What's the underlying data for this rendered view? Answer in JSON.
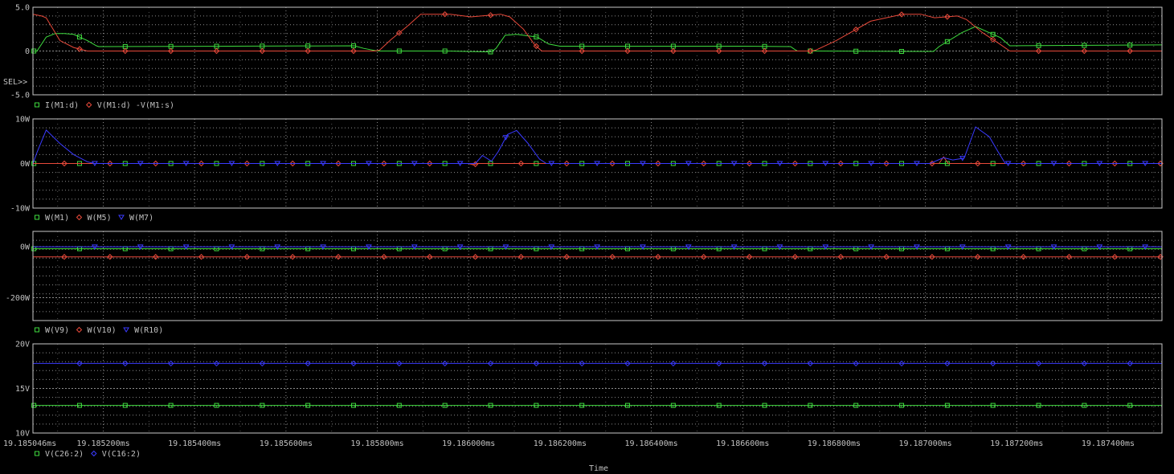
{
  "colors": {
    "background": "#000000",
    "frame": "#c8c8c8",
    "grid": "#8c8c8c",
    "text": "#c0c0c0",
    "green": "#3fdc3f",
    "red": "#e8493a",
    "blue": "#3a3aff"
  },
  "icons": {
    "square": "square-marker-icon",
    "diamond": "diamond-marker-icon",
    "triangle": "triangle-down-marker-icon"
  },
  "x_axis": {
    "label": "Time",
    "xlim": [
      19.185046,
      19.187518
    ],
    "unit": "ms",
    "ticks": [
      {
        "value": 19.185046,
        "label": "19.185046ms"
      },
      {
        "value": 19.1852,
        "label": "19.185200ms"
      },
      {
        "value": 19.1854,
        "label": "19.185400ms"
      },
      {
        "value": 19.1856,
        "label": "19.185600ms"
      },
      {
        "value": 19.1858,
        "label": "19.185800ms"
      },
      {
        "value": 19.186,
        "label": "19.186000ms"
      },
      {
        "value": 19.1862,
        "label": "19.186200ms"
      },
      {
        "value": 19.1864,
        "label": "19.186400ms"
      },
      {
        "value": 19.1866,
        "label": "19.186600ms"
      },
      {
        "value": 19.1868,
        "label": "19.186800ms"
      },
      {
        "value": 19.187,
        "label": "19.187000ms"
      },
      {
        "value": 19.1872,
        "label": "19.187200ms"
      },
      {
        "value": 19.1874,
        "label": "19.187400ms"
      }
    ]
  },
  "chart_data": [
    {
      "type": "line",
      "title": "",
      "ylim": [
        -5,
        5
      ],
      "yticks": [
        {
          "value": 5,
          "label": "5.0"
        },
        {
          "value": 0,
          "label": "0"
        },
        {
          "value": -5,
          "label": "-5.0"
        }
      ],
      "sel_label": "SEL>>",
      "grid": true,
      "series": [
        {
          "name": "I(M1:d)",
          "color": "green",
          "marker": "square",
          "x": [
            19.185046,
            19.185055,
            19.185075,
            19.185095,
            19.185115,
            19.185135,
            19.185165,
            19.185185,
            19.18519,
            19.18575,
            19.18577,
            19.1858,
            19.18595,
            19.18605,
            19.18606,
            19.18608,
            19.186105,
            19.18615,
            19.186175,
            19.1862,
            19.1866,
            19.186705,
            19.186712,
            19.18672,
            19.18675,
            19.18697,
            19.187018,
            19.18703,
            19.18708,
            19.18711,
            19.187165,
            19.187185,
            19.187518
          ],
          "y": [
            0,
            0,
            1.6,
            2,
            2,
            1.9,
            1.2,
            0.6,
            0.5,
            0.6,
            0.3,
            0,
            0,
            -0.1,
            0.3,
            1.8,
            1.9,
            1.6,
            0.8,
            0.55,
            0.55,
            0.5,
            0.25,
            0,
            0,
            -0.05,
            -0.05,
            0.5,
            2.1,
            2.8,
            1.5,
            0.6,
            0.7
          ]
        },
        {
          "name": "V(M1:d) -V(M1:s)",
          "color": "red",
          "marker": "diamond",
          "x": [
            19.185046,
            19.185065,
            19.185075,
            19.185105,
            19.185135,
            19.185165,
            19.185795,
            19.185805,
            19.18583,
            19.185865,
            19.185895,
            19.18596,
            19.186005,
            19.18607,
            19.18609,
            19.18612,
            19.186145,
            19.18616,
            19.18675,
            19.18676,
            19.186805,
            19.18688,
            19.18695,
            19.18699,
            19.18702,
            19.18707,
            19.18709,
            19.187125,
            19.18716,
            19.187185,
            19.187518
          ],
          "y": [
            4.2,
            4,
            3.8,
            1.2,
            0.4,
            0,
            0,
            0.1,
            1.3,
            2.8,
            4.2,
            4.2,
            3.9,
            4.2,
            3.9,
            2.5,
            0.7,
            0,
            0,
            0.1,
            1.2,
            3.4,
            4.2,
            4.2,
            3.8,
            4,
            3.6,
            2.1,
            0.9,
            0,
            0
          ]
        }
      ]
    },
    {
      "type": "line",
      "title": "",
      "ylim": [
        -10,
        10
      ],
      "yticks": [
        {
          "value": 10,
          "label": "10W"
        },
        {
          "value": 0,
          "label": "0W"
        },
        {
          "value": -10,
          "label": "-10W"
        }
      ],
      "grid": true,
      "series": [
        {
          "name": "W(M1)",
          "color": "green",
          "marker": "square",
          "x": [
            19.185046,
            19.187518
          ],
          "y": [
            0,
            0
          ]
        },
        {
          "name": "W(M5)",
          "color": "red",
          "marker": "diamond",
          "x": [
            19.185046,
            19.186,
            19.18601,
            19.18602,
            19.18703,
            19.18704,
            19.18705,
            19.187518
          ],
          "y": [
            0,
            0,
            -0.3,
            0,
            0,
            1.5,
            0,
            0
          ]
        },
        {
          "name": "W(M7)",
          "color": "blue",
          "marker": "triangle",
          "x": [
            19.185046,
            19.185055,
            19.185075,
            19.185105,
            19.185135,
            19.185165,
            19.18518,
            19.186015,
            19.18603,
            19.18605,
            19.186065,
            19.186085,
            19.186105,
            19.18613,
            19.186155,
            19.18617,
            19.18701,
            19.18704,
            19.18706,
            19.187085,
            19.18711,
            19.18714,
            19.18716,
            19.187175,
            19.187518
          ],
          "y": [
            0,
            2.5,
            7.5,
            4.5,
            2,
            0.4,
            0,
            0,
            1.8,
            0.5,
            2.7,
            6.5,
            7.4,
            4.5,
            1,
            0,
            0,
            1.3,
            0.8,
            1.2,
            8.2,
            6,
            2.5,
            0,
            0
          ]
        }
      ]
    },
    {
      "type": "line",
      "title": "",
      "ylim": [
        -290,
        60
      ],
      "yticks": [
        {
          "value": 0,
          "label": "0W"
        },
        {
          "value": -200,
          "label": "-200W"
        }
      ],
      "grid": true,
      "series": [
        {
          "name": "W(V9)",
          "color": "green",
          "marker": "square",
          "x": [
            19.185046,
            19.187518
          ],
          "y": [
            -8,
            -8
          ]
        },
        {
          "name": "W(V10)",
          "color": "red",
          "marker": "diamond",
          "x": [
            19.185046,
            19.187518
          ],
          "y": [
            -40,
            -40
          ]
        },
        {
          "name": "W(R10)",
          "color": "blue",
          "marker": "triangle",
          "x": [
            19.185046,
            19.187518
          ],
          "y": [
            -1,
            -1
          ]
        }
      ]
    },
    {
      "type": "line",
      "title": "",
      "ylim": [
        10,
        20
      ],
      "yticks": [
        {
          "value": 20,
          "label": "20V"
        },
        {
          "value": 15,
          "label": "15V"
        },
        {
          "value": 10,
          "label": "10V"
        }
      ],
      "grid": true,
      "series": [
        {
          "name": "V(C26:2)",
          "color": "green",
          "marker": "square",
          "x": [
            19.185046,
            19.187518
          ],
          "y": [
            13.1,
            13.1
          ]
        },
        {
          "name": "V(C16:2)",
          "color": "blue",
          "marker": "diamond",
          "x": [
            19.185046,
            19.187518
          ],
          "y": [
            17.8,
            17.8
          ]
        }
      ]
    }
  ]
}
